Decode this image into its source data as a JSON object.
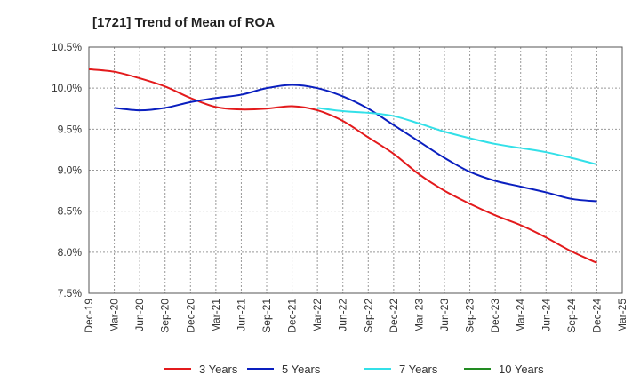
{
  "chart_data": {
    "type": "line",
    "title": "[1721]  Trend of Mean of ROA",
    "xlabel": "",
    "ylabel": "",
    "ylim": [
      7.5,
      10.5
    ],
    "yticks": [
      7.5,
      8.0,
      8.5,
      9.0,
      9.5,
      10.0,
      10.5
    ],
    "ytick_labels": [
      "7.5%",
      "8.0%",
      "8.5%",
      "9.0%",
      "9.5%",
      "10.0%",
      "10.5%"
    ],
    "x_labels": [
      "Dec-19",
      "Mar-20",
      "Jun-20",
      "Sep-20",
      "Dec-20",
      "Mar-21",
      "Jun-21",
      "Sep-21",
      "Dec-21",
      "Mar-22",
      "Jun-22",
      "Sep-22",
      "Dec-22",
      "Mar-23",
      "Jun-23",
      "Sep-23",
      "Dec-23",
      "Mar-24",
      "Jun-24",
      "Sep-24",
      "Dec-24",
      "Mar-25"
    ],
    "grid": true,
    "legend_position": "bottom",
    "series": [
      {
        "name": "3 Years",
        "color": "#e31a1c",
        "start_index": 0,
        "values": [
          10.23,
          10.2,
          10.12,
          10.02,
          9.88,
          9.77,
          9.74,
          9.75,
          9.78,
          9.73,
          9.6,
          9.4,
          9.2,
          8.95,
          8.75,
          8.59,
          8.45,
          8.33,
          8.18,
          8.01,
          7.87
        ]
      },
      {
        "name": "5 Years",
        "color": "#0a1fbf",
        "start_index": 1,
        "values": [
          9.76,
          9.73,
          9.76,
          9.83,
          9.88,
          9.92,
          10.0,
          10.04,
          10.0,
          9.9,
          9.75,
          9.55,
          9.35,
          9.15,
          8.98,
          8.87,
          8.8,
          8.73,
          8.65,
          8.62
        ]
      },
      {
        "name": "7 Years",
        "color": "#33e0e8",
        "start_index": 9,
        "values": [
          9.76,
          9.72,
          9.7,
          9.66,
          9.57,
          9.47,
          9.39,
          9.32,
          9.27,
          9.22,
          9.15,
          9.07
        ]
      },
      {
        "name": "10 Years",
        "color": "#228b22",
        "start_index": 21,
        "values": []
      }
    ]
  }
}
